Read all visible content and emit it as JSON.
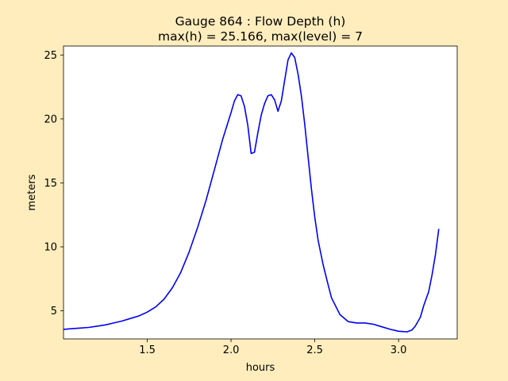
{
  "chart_data": {
    "type": "line",
    "title": "Gauge 864 : Flow Depth (h)",
    "subtitle": "max(h) =  25.166,    max(level) = 7",
    "xlabel": "hours",
    "ylabel": "meters",
    "xlim": [
      1.0,
      3.35
    ],
    "ylim": [
      2.8,
      25.7
    ],
    "xticks": [
      1.5,
      2.0,
      2.5,
      3.0
    ],
    "xtick_labels": [
      "1.5",
      "2.0",
      "2.5",
      "3.0"
    ],
    "yticks": [
      5,
      10,
      15,
      20,
      25
    ],
    "ytick_labels": [
      "5",
      "10",
      "15",
      "20",
      "25"
    ],
    "grid": false,
    "series": [
      {
        "color": "#0000ff",
        "x": [
          1.0,
          1.05,
          1.1,
          1.15,
          1.2,
          1.25,
          1.3,
          1.35,
          1.4,
          1.45,
          1.5,
          1.55,
          1.6,
          1.65,
          1.7,
          1.75,
          1.8,
          1.85,
          1.9,
          1.95,
          2.0,
          2.02,
          2.04,
          2.06,
          2.08,
          2.1,
          2.12,
          2.14,
          2.16,
          2.18,
          2.2,
          2.22,
          2.24,
          2.26,
          2.28,
          2.3,
          2.32,
          2.34,
          2.36,
          2.38,
          2.4,
          2.42,
          2.44,
          2.46,
          2.48,
          2.5,
          2.52,
          2.55,
          2.58,
          2.6,
          2.65,
          2.7,
          2.75,
          2.8,
          2.85,
          2.9,
          2.95,
          3.0,
          3.05,
          3.08,
          3.1,
          3.13,
          3.15,
          3.18,
          3.2,
          3.22,
          3.24
        ],
        "y": [
          3.55,
          3.6,
          3.65,
          3.7,
          3.8,
          3.9,
          4.05,
          4.2,
          4.4,
          4.6,
          4.9,
          5.3,
          5.9,
          6.8,
          8.0,
          9.6,
          11.5,
          13.6,
          16.0,
          18.4,
          20.5,
          21.4,
          21.9,
          21.8,
          21.0,
          19.5,
          17.3,
          17.4,
          18.9,
          20.3,
          21.2,
          21.8,
          21.9,
          21.5,
          20.6,
          21.4,
          23.0,
          24.6,
          25.166,
          24.8,
          23.5,
          21.8,
          19.6,
          17.0,
          14.5,
          12.3,
          10.5,
          8.6,
          7.0,
          6.0,
          4.7,
          4.15,
          4.05,
          4.05,
          3.95,
          3.75,
          3.55,
          3.4,
          3.35,
          3.5,
          3.8,
          4.5,
          5.4,
          6.5,
          7.8,
          9.4,
          11.4
        ]
      }
    ]
  }
}
